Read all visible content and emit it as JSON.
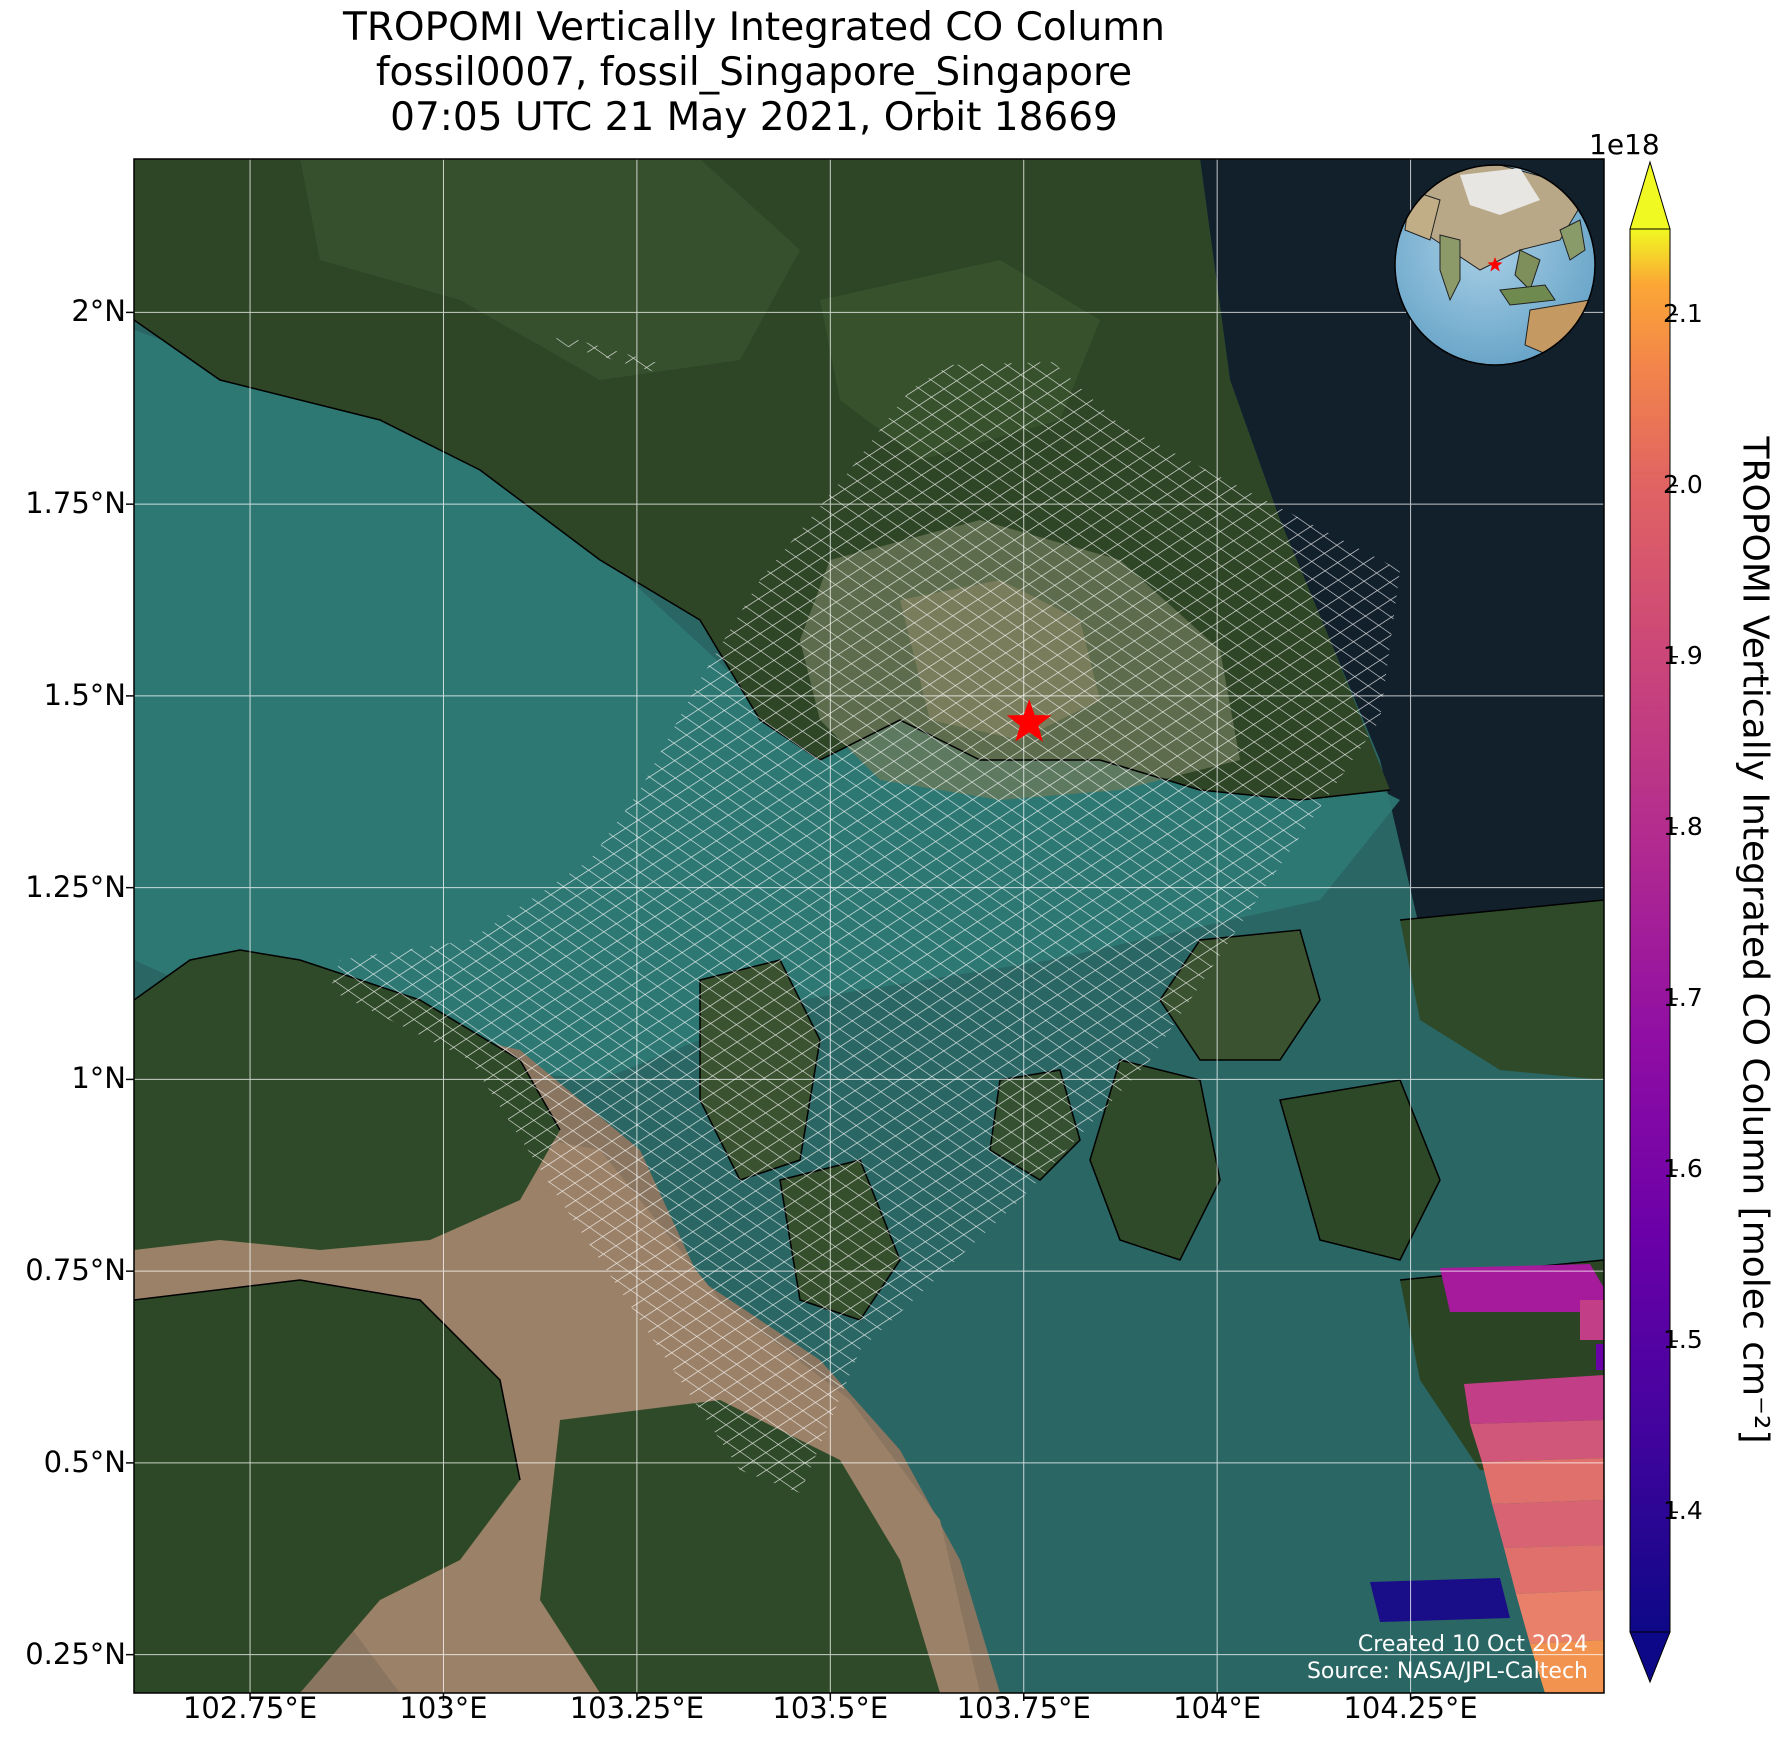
{
  "title": {
    "line1": "TROPOMI Vertically Integrated CO Column",
    "line2": "fossil0007, fossil_Singapore_Singapore",
    "line3": "07:05 UTC 21 May 2021, Orbit 18669"
  },
  "map_extent": {
    "lon_min": 102.6,
    "lon_max": 104.5,
    "lat_min": 0.2,
    "lat_max": 2.2
  },
  "grid": {
    "enabled": true,
    "color": "#ffffff"
  },
  "lat_ticks": [
    {
      "value": 2.0,
      "label": "2°N"
    },
    {
      "value": 1.75,
      "label": "1.75°N"
    },
    {
      "value": 1.5,
      "label": "1.5°N"
    },
    {
      "value": 1.25,
      "label": "1.25°N"
    },
    {
      "value": 1.0,
      "label": "1°N"
    },
    {
      "value": 0.75,
      "label": "0.75°N"
    },
    {
      "value": 0.5,
      "label": "0.5°N"
    },
    {
      "value": 0.25,
      "label": "0.25°N"
    }
  ],
  "lon_ticks": [
    {
      "value": 102.75,
      "label": "102.75°E"
    },
    {
      "value": 103.0,
      "label": "103°E"
    },
    {
      "value": 103.25,
      "label": "103.25°E"
    },
    {
      "value": 103.5,
      "label": "103.5°E"
    },
    {
      "value": 103.75,
      "label": "103.75°E"
    },
    {
      "value": 104.0,
      "label": "104°E"
    },
    {
      "value": 104.25,
      "label": "104.25°E"
    }
  ],
  "target_site": {
    "lon": 103.757,
    "lat": 1.465,
    "marker": "red-star",
    "color": "#ff0000"
  },
  "inset_globe": {
    "marker": "red-star",
    "region": "Southeast Asia"
  },
  "colorbar": {
    "label": "TROPOMI Vertically Integrated CO Column [molec cm⁻²]",
    "exponent": "1e18",
    "min": 1.33,
    "max": 2.15,
    "colormap": "plasma",
    "extend": "both",
    "ticks": [
      {
        "value": 1.4,
        "label": "1.4"
      },
      {
        "value": 1.5,
        "label": "1.5"
      },
      {
        "value": 1.6,
        "label": "1.6"
      },
      {
        "value": 1.7,
        "label": "1.7"
      },
      {
        "value": 1.8,
        "label": "1.8"
      },
      {
        "value": 1.9,
        "label": "1.9"
      },
      {
        "value": 2.0,
        "label": "2.0"
      },
      {
        "value": 2.1,
        "label": "2.1"
      }
    ]
  },
  "pixel_colors": {
    "magenta": "#a51b9b",
    "pink_dark": "#c23e86",
    "pink": "#d0577a",
    "salmon": "#e0706b",
    "orange": "#f2944f",
    "navy": "#1a0d88"
  },
  "credits": {
    "created": "Created 10 Oct 2024",
    "source": "Source: NASA/JPL-Caltech"
  }
}
